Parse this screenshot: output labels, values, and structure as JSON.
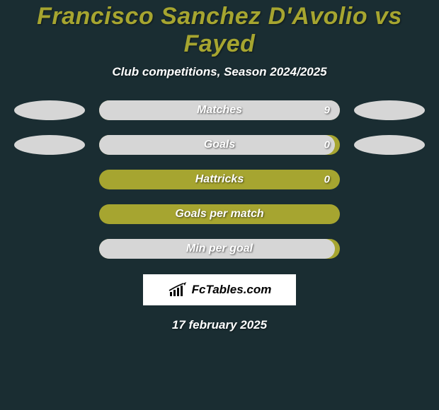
{
  "colors": {
    "page_bg": "#1a2d32",
    "title_color": "#a6a530",
    "subtitle_color": "#ffffff",
    "bar_bg": "#a6a530",
    "bar_fill": "#d6d6d6",
    "bar_label_color": "#ffffff",
    "bar_value_color": "#ffffff",
    "ellipse_bg": "#d6d6d6",
    "logo_bg": "#ffffff",
    "date_color": "#ffffff"
  },
  "header": {
    "title": "Francisco Sanchez D'Avolio vs Fayed",
    "subtitle": "Club competitions, Season 2024/2025"
  },
  "stats": [
    {
      "label": "Matches",
      "value": "9",
      "show_value": true,
      "fill_pct": 100,
      "show_ellipses": true
    },
    {
      "label": "Goals",
      "value": "0",
      "show_value": true,
      "fill_pct": 98,
      "show_ellipses": true
    },
    {
      "label": "Hattricks",
      "value": "0",
      "show_value": true,
      "fill_pct": 0,
      "show_ellipses": false
    },
    {
      "label": "Goals per match",
      "value": "",
      "show_value": false,
      "fill_pct": 0,
      "show_ellipses": false
    },
    {
      "label": "Min per goal",
      "value": "",
      "show_value": false,
      "fill_pct": 98,
      "show_ellipses": false
    }
  ],
  "logo": {
    "text": "FcTables.com"
  },
  "footer": {
    "date": "17 february 2025"
  }
}
